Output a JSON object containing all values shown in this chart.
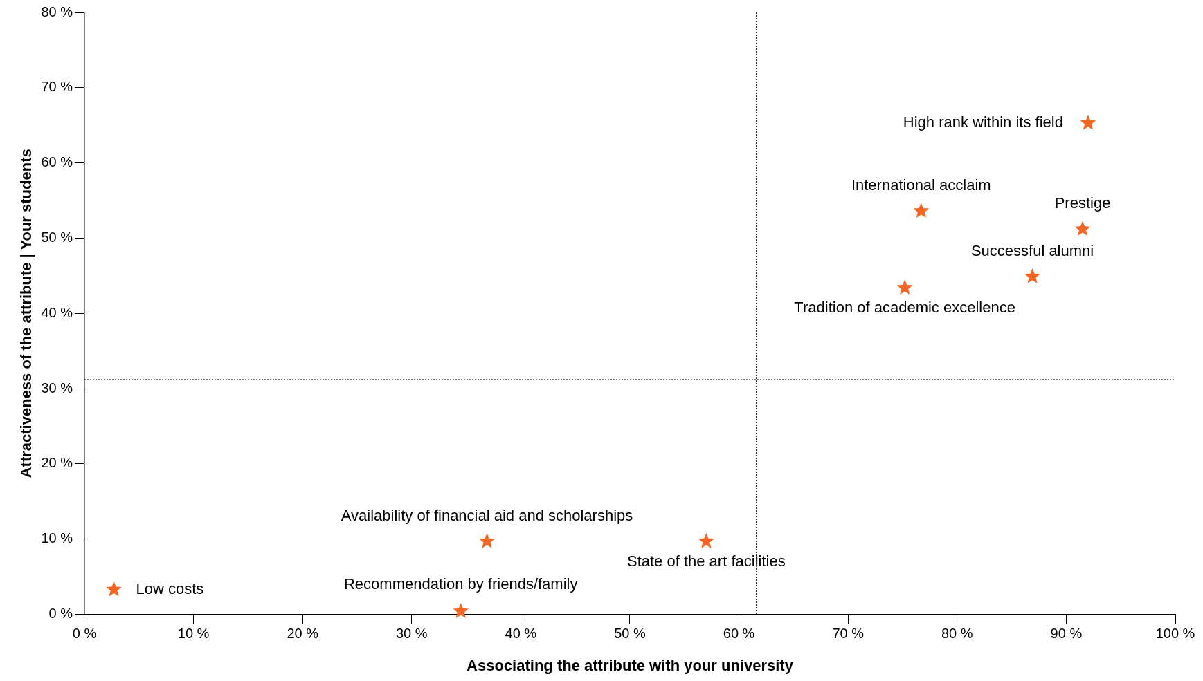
{
  "chart_data": {
    "type": "scatter",
    "xlabel": "Associating the attribute with your university",
    "ylabel": "Attractiveness of the attribute | Your students",
    "series": [
      {
        "color": "#f26522",
        "x": [
          92.0,
          76.7,
          91.5,
          86.9,
          75.2,
          36.9,
          57.0,
          2.7,
          34.5
        ],
        "values": [
          65.3,
          53.6,
          51.2,
          44.9,
          43.4,
          9.7,
          9.7,
          3.3,
          0.4
        ]
      }
    ],
    "annotations": [
      {
        "text": "High rank within its field",
        "x": 92.0,
        "y": 65.3
      },
      {
        "text": "International acclaim",
        "x": 76.7,
        "y": 53.6
      },
      {
        "text": "Prestige",
        "x": 91.5,
        "y": 51.2
      },
      {
        "text": "Successful alumni",
        "x": 86.9,
        "y": 44.9
      },
      {
        "text": "Tradition of academic excellence",
        "x": 75.2,
        "y": 43.4
      },
      {
        "text": "Availability of financial aid and scholarships",
        "x": 36.9,
        "y": 9.7
      },
      {
        "text": "State of the art facilities",
        "x": 57.0,
        "y": 9.7
      },
      {
        "text": "Low costs",
        "x": 2.7,
        "y": 3.3
      },
      {
        "text": "Recommendation by friends/family",
        "x": 34.5,
        "y": 0.4
      }
    ],
    "ref_lines": [
      {
        "axis": "x",
        "value": 61.6,
        "line_style": "dotted",
        "color": "#000000"
      },
      {
        "axis": "y",
        "value": 31.2,
        "line_style": "dotted",
        "color": "#000000"
      }
    ],
    "xlim": [
      0,
      100
    ],
    "ylim": [
      0,
      80
    ],
    "xticks": [
      {
        "value": 0,
        "label": "0 %"
      },
      {
        "value": 10,
        "label": "10 %"
      },
      {
        "value": 20,
        "label": "20 %"
      },
      {
        "value": 30,
        "label": "30 %"
      },
      {
        "value": 40,
        "label": "40 %"
      },
      {
        "value": 50,
        "label": "50 %"
      },
      {
        "value": 60,
        "label": "60 %"
      },
      {
        "value": 70,
        "label": "70 %"
      },
      {
        "value": 80,
        "label": "80 %"
      },
      {
        "value": 90,
        "label": "90 %"
      },
      {
        "value": 100,
        "label": "100 %"
      }
    ],
    "yticks": [
      {
        "value": 0,
        "label": "0 %"
      },
      {
        "value": 10,
        "label": "10 %"
      },
      {
        "value": 20,
        "label": "20 %"
      },
      {
        "value": 30,
        "label": "30 %"
      },
      {
        "value": 40,
        "label": "40 %"
      },
      {
        "value": 50,
        "label": "50 %"
      },
      {
        "value": 60,
        "label": "60 %"
      },
      {
        "value": 70,
        "label": "70 %"
      },
      {
        "value": 80,
        "label": "80 %"
      }
    ],
    "grid": false,
    "legend": false,
    "marker": "star"
  }
}
